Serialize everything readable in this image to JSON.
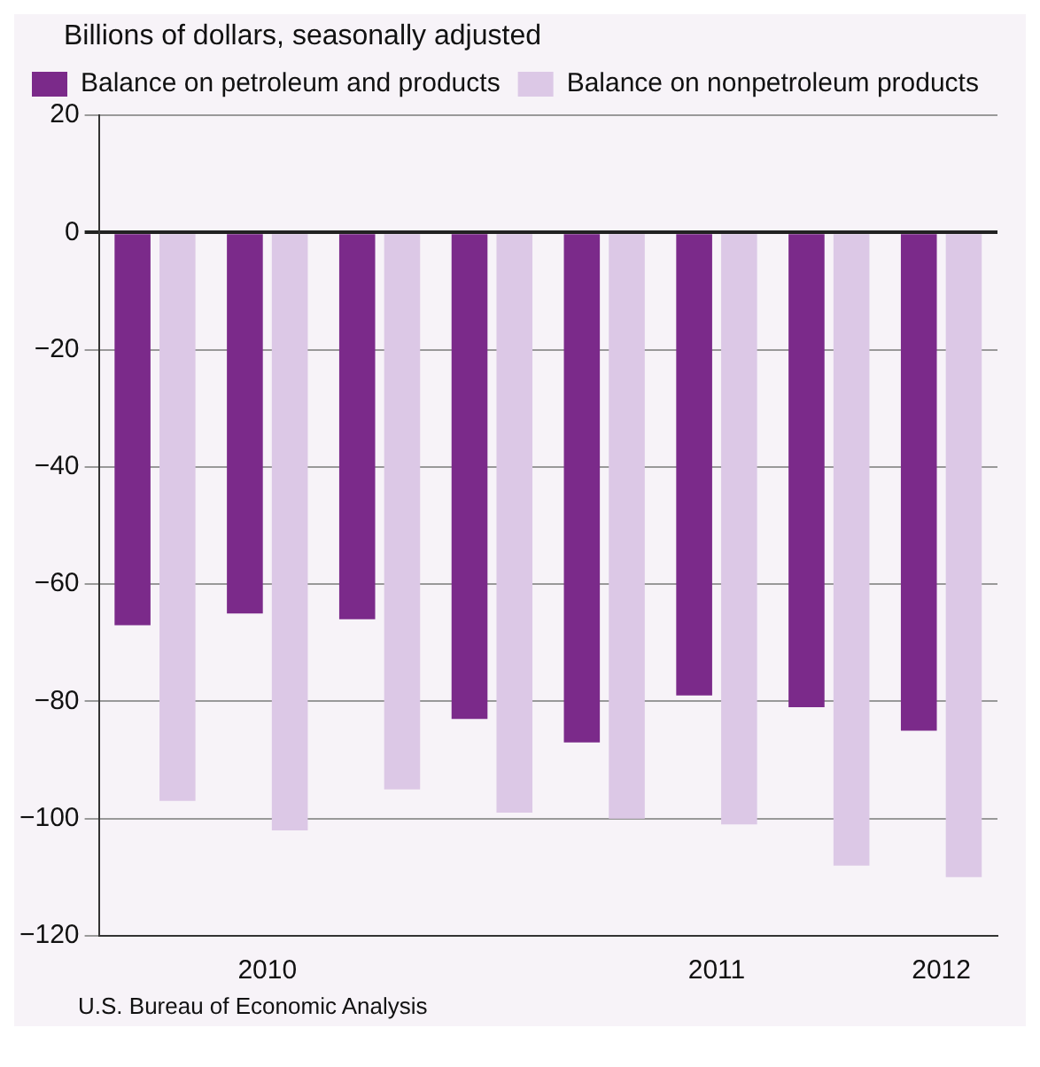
{
  "chart_data": {
    "type": "bar",
    "ylabel": "Billions of dollars, seasonally adjusted",
    "categories": [
      null,
      "2010",
      null,
      null,
      null,
      "2011",
      null,
      "2012"
    ],
    "series": [
      {
        "name": "Balance on petroleum and products",
        "color": "#7b2a8a",
        "values": [
          -67,
          -65,
          -66,
          -83,
          -87,
          -79,
          -81,
          -85
        ]
      },
      {
        "name": "Balance on nonpetroleum products",
        "color": "#dcc8e6",
        "values": [
          -97,
          -102,
          -95,
          -99,
          -100,
          -101,
          -108,
          -110
        ]
      }
    ],
    "ylim": [
      -120,
      20
    ],
    "yticks": [
      -120,
      -100,
      -80,
      -60,
      -40,
      -20,
      0,
      20
    ],
    "grid": "y",
    "legend": "top left",
    "annotations": [
      "U.S. Bureau of Economic Analysis"
    ]
  }
}
